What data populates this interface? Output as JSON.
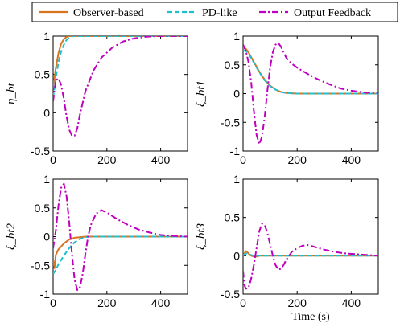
{
  "colors": {
    "observer": "#D9741E",
    "pd": "#1FBFCF",
    "output": "#BF00BF"
  },
  "legend": {
    "items": [
      {
        "label": "Observer-based",
        "color": "#D9741E",
        "dash": "solid"
      },
      {
        "label": "PD-like",
        "color": "#1FBFCF",
        "dash": "dashed"
      },
      {
        "label": "Output Feedback",
        "color": "#BF00BF",
        "dash": "dashdot"
      }
    ]
  },
  "chart_data": [
    {
      "type": "line",
      "ylabel": "η_bt",
      "xlabel": "",
      "xlim": [
        0,
        500
      ],
      "ylim": [
        -0.5,
        1
      ],
      "xticks": [
        "0",
        "200",
        "400"
      ],
      "yticks": [
        "-0.5",
        "0",
        "0.5",
        "1"
      ],
      "series": [
        {
          "name": "Observer-based",
          "x": [
            0,
            5,
            10,
            20,
            30,
            40,
            50,
            60,
            500
          ],
          "y": [
            0.35,
            0.45,
            0.58,
            0.78,
            0.9,
            0.96,
            0.99,
            1.0,
            1.0
          ]
        },
        {
          "name": "PD-like",
          "x": [
            0,
            5,
            10,
            20,
            30,
            40,
            50,
            60,
            70,
            500
          ],
          "y": [
            0.2,
            0.32,
            0.45,
            0.66,
            0.8,
            0.89,
            0.95,
            0.98,
            1.0,
            1.0
          ]
        },
        {
          "name": "Output Feedback",
          "x": [
            0,
            10,
            20,
            30,
            40,
            50,
            60,
            70,
            80,
            90,
            100,
            120,
            150,
            180,
            220,
            260,
            300,
            340,
            380,
            420,
            500
          ],
          "y": [
            0.15,
            0.42,
            0.45,
            0.36,
            0.18,
            -0.05,
            -0.22,
            -0.3,
            -0.3,
            -0.2,
            -0.02,
            0.28,
            0.55,
            0.72,
            0.85,
            0.93,
            0.97,
            0.99,
            1.0,
            1.0,
            1.0
          ]
        }
      ]
    },
    {
      "type": "line",
      "ylabel": "ξ_bt1",
      "xlabel": "",
      "xlim": [
        0,
        500
      ],
      "ylim": [
        -1,
        1
      ],
      "xticks": [
        "0",
        "200",
        "400"
      ],
      "yticks": [
        "-1",
        "-0.5",
        "0",
        "0.5",
        "1"
      ],
      "series": [
        {
          "name": "Observer-based",
          "x": [
            0,
            10,
            20,
            40,
            60,
            80,
            100,
            120,
            140,
            160,
            200,
            250,
            500
          ],
          "y": [
            0.8,
            0.78,
            0.72,
            0.55,
            0.38,
            0.24,
            0.14,
            0.07,
            0.03,
            0.01,
            0.0,
            0.0,
            0.0
          ]
        },
        {
          "name": "PD-like",
          "x": [
            0,
            10,
            20,
            40,
            60,
            80,
            100,
            120,
            140,
            160,
            200,
            250,
            500
          ],
          "y": [
            0.75,
            0.74,
            0.7,
            0.54,
            0.37,
            0.23,
            0.13,
            0.07,
            0.03,
            0.01,
            0.0,
            0.0,
            0.0
          ]
        },
        {
          "name": "Output Feedback",
          "x": [
            0,
            10,
            20,
            30,
            40,
            50,
            60,
            70,
            80,
            90,
            100,
            110,
            120,
            130,
            140,
            150,
            160,
            180,
            200,
            240,
            280,
            320,
            360,
            400,
            450,
            500
          ],
          "y": [
            0.85,
            0.75,
            0.55,
            0.2,
            -0.3,
            -0.72,
            -0.88,
            -0.75,
            -0.4,
            0.05,
            0.45,
            0.72,
            0.85,
            0.88,
            0.82,
            0.72,
            0.62,
            0.52,
            0.45,
            0.34,
            0.24,
            0.16,
            0.09,
            0.05,
            0.02,
            0.01
          ]
        }
      ]
    },
    {
      "type": "line",
      "ylabel": "ξ_bt2",
      "xlabel": "",
      "xlim": [
        0,
        500
      ],
      "ylim": [
        -1,
        1
      ],
      "xticks": [
        "0",
        "200",
        "400"
      ],
      "yticks": [
        "-1",
        "-0.5",
        "0",
        "0.5",
        "1"
      ],
      "series": [
        {
          "name": "Observer-based",
          "x": [
            0,
            5,
            10,
            20,
            40,
            60,
            80,
            100,
            120,
            500
          ],
          "y": [
            -0.4,
            -0.55,
            -0.32,
            -0.22,
            -0.12,
            -0.05,
            -0.02,
            -0.01,
            0.0,
            0.0
          ]
        },
        {
          "name": "PD-like",
          "x": [
            0,
            10,
            20,
            40,
            60,
            80,
            100,
            120,
            140,
            500
          ],
          "y": [
            -0.65,
            -0.58,
            -0.48,
            -0.33,
            -0.2,
            -0.1,
            -0.04,
            -0.01,
            0.0,
            0.0
          ]
        },
        {
          "name": "Output Feedback",
          "x": [
            0,
            10,
            20,
            30,
            40,
            50,
            60,
            70,
            80,
            90,
            100,
            110,
            120,
            130,
            140,
            160,
            180,
            200,
            240,
            280,
            320,
            360,
            400,
            450,
            500
          ],
          "y": [
            -0.2,
            0.1,
            0.55,
            0.85,
            0.92,
            0.7,
            0.25,
            -0.3,
            -0.75,
            -0.93,
            -0.88,
            -0.65,
            -0.3,
            0.0,
            0.2,
            0.4,
            0.46,
            0.42,
            0.3,
            0.2,
            0.12,
            0.07,
            0.03,
            0.01,
            0.0
          ]
        }
      ]
    },
    {
      "type": "line",
      "ylabel": "ξ_bt3",
      "xlabel": "Time (s)",
      "xlim": [
        0,
        500
      ],
      "ylim": [
        -0.5,
        1
      ],
      "xticks": [
        "0",
        "200",
        "400"
      ],
      "yticks": [
        "-0.5",
        "0",
        "0.5",
        "1"
      ],
      "series": [
        {
          "name": "Observer-based",
          "x": [
            0,
            5,
            10,
            15,
            20,
            25,
            30,
            40,
            50,
            60,
            70,
            80,
            500
          ],
          "y": [
            0.0,
            0.03,
            0.06,
            0.05,
            0.03,
            0.01,
            0.0,
            -0.01,
            -0.01,
            0.0,
            0.0,
            0.0,
            0.0
          ]
        },
        {
          "name": "PD-like",
          "x": [
            0,
            5,
            10,
            20,
            30,
            40,
            50,
            60,
            500
          ],
          "y": [
            0.0,
            0.02,
            0.03,
            0.02,
            0.01,
            0.0,
            0.0,
            0.0,
            0.0
          ]
        },
        {
          "name": "Output Feedback",
          "x": [
            0,
            5,
            10,
            20,
            30,
            40,
            50,
            60,
            70,
            80,
            90,
            100,
            110,
            120,
            130,
            140,
            150,
            160,
            180,
            200,
            220,
            240,
            260,
            300,
            340,
            380,
            420,
            460,
            500
          ],
          "y": [
            -0.2,
            -0.38,
            -0.43,
            -0.42,
            -0.3,
            -0.12,
            0.1,
            0.32,
            0.42,
            0.4,
            0.3,
            0.15,
            0.0,
            -0.12,
            -0.18,
            -0.17,
            -0.12,
            -0.05,
            0.05,
            0.1,
            0.13,
            0.14,
            0.12,
            0.08,
            0.05,
            0.03,
            0.02,
            0.01,
            0.0
          ]
        }
      ]
    }
  ]
}
